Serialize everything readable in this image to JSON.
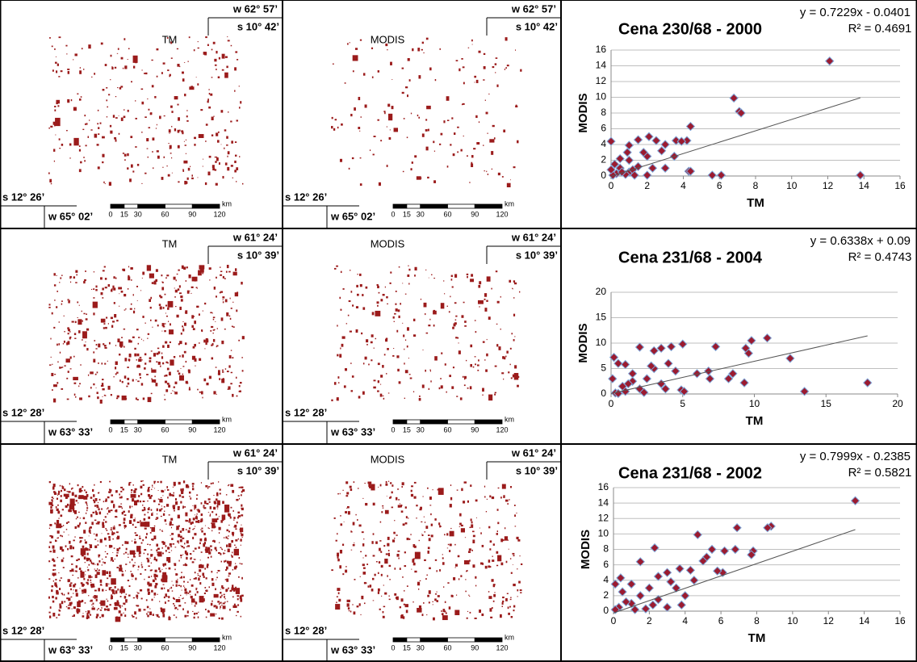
{
  "maps": [
    {
      "label": "TM",
      "top_w": "w 62° 57’",
      "top_s": "s 10° 42’",
      "bottom_s": "s 12° 26’",
      "bottom_w": "w 65° 02’"
    },
    {
      "label": "MODIS",
      "top_w": "w 62° 57’",
      "top_s": "s 10° 42’",
      "bottom_s": "s 12° 26’",
      "bottom_w": "w 65° 02’"
    },
    {
      "label": "TM",
      "top_w": "w 61° 24’",
      "top_s": "s 10° 39’",
      "bottom_s": "s 12° 28’",
      "bottom_w": "w 63° 33’"
    },
    {
      "label": "MODIS",
      "top_w": "w 61° 24’",
      "top_s": "s 10° 39’",
      "bottom_s": "s 12° 28’",
      "bottom_w": "w 63° 33’"
    },
    {
      "label": "TM",
      "top_w": "w 61° 24’",
      "top_s": "s 10° 39’",
      "bottom_s": "s 12° 28’",
      "bottom_w": "w 63° 33’"
    },
    {
      "label": "MODIS",
      "top_w": "w 61° 24’",
      "top_s": "s 10° 39’",
      "bottom_s": "s 12° 28’",
      "bottom_w": "w 63° 33’"
    }
  ],
  "scale_ticks": [
    0,
    15,
    30,
    60,
    90,
    120
  ],
  "scale_unit": "km",
  "chart_data": [
    {
      "type": "scatter",
      "title": "Cena 230/68 - 2000",
      "equation": "y = 0.7229x - 0.0401",
      "r2": "R² = 0.4691",
      "x_label": "TM",
      "y_label": "MODIS",
      "color": "#9b1b30",
      "edge_color": "#7fa7d9",
      "grid": true,
      "xlim": [
        0,
        16
      ],
      "xticks": [
        0,
        2,
        4,
        6,
        8,
        10,
        12,
        14,
        16
      ],
      "ylim": [
        0,
        16
      ],
      "yticks": [
        0,
        2,
        4,
        6,
        8,
        10,
        12,
        14,
        16
      ],
      "trendline": {
        "slope": 0.7229,
        "intercept": -0.0401
      },
      "x": [
        12.1,
        6.8,
        7.1,
        7.2,
        13.8,
        5.6,
        6.1,
        4.4,
        4.2,
        3.6,
        3.9,
        4.3,
        4.4,
        2.1,
        1.5,
        0,
        1,
        2.5,
        3,
        0.5,
        1,
        2,
        2.3,
        3,
        1,
        0.3,
        0.1,
        0.5,
        1.5,
        2,
        0.8,
        1.2,
        0.2,
        3.5,
        2.8,
        1.8,
        0.9,
        1.3,
        0,
        0.6
      ],
      "values": [
        14.6,
        9.9,
        8.2,
        8.0,
        0.1,
        0.1,
        0.1,
        6.3,
        4.5,
        4.5,
        4.4,
        0.6,
        0.6,
        5.0,
        4.6,
        4.4,
        3.9,
        4.5,
        4.0,
        2.2,
        2,
        2.5,
        1.0,
        1.0,
        0.5,
        0.3,
        0.1,
        1.0,
        1.2,
        0.1,
        0.2,
        0.8,
        1.5,
        2.5,
        3.2,
        3.0,
        3.0,
        0.1,
        0.8,
        0.5
      ]
    },
    {
      "type": "scatter",
      "title": "Cena 231/68 - 2004",
      "equation": "y = 0.6338x + 0.09",
      "r2": "R² = 0.4743",
      "x_label": "TM",
      "y_label": "MODIS",
      "color": "#9b1b30",
      "edge_color": "#7fa7d9",
      "grid": true,
      "xlim": [
        0,
        20
      ],
      "xticks": [
        0,
        5,
        10,
        15,
        20
      ],
      "ylim": [
        0,
        20
      ],
      "yticks": [
        0,
        5,
        10,
        15,
        20
      ],
      "trendline": {
        "slope": 0.6338,
        "intercept": 0.09
      },
      "x": [
        17.9,
        13.5,
        12.5,
        10.9,
        9.8,
        9.4,
        9.6,
        9.3,
        8.5,
        8.2,
        7.3,
        6.8,
        6.9,
        5,
        4.2,
        3.5,
        3,
        2,
        0.2,
        0.5,
        1,
        4.9,
        5.1,
        1.5,
        2.5,
        3,
        4,
        4.5,
        3.5,
        2,
        1,
        0.3,
        0.8,
        1.5,
        2.3,
        3.8,
        0.1,
        0.5,
        1.2,
        2.8,
        6
      ],
      "values": [
        2.2,
        0.5,
        7,
        11,
        10.5,
        9,
        8,
        2.2,
        4,
        3,
        9.3,
        4.5,
        3,
        9.8,
        9.3,
        9,
        8.5,
        9.2,
        7.2,
        6,
        5.8,
        0.8,
        0.5,
        4,
        3,
        5,
        6,
        4.5,
        2,
        1,
        0.5,
        0.2,
        1.5,
        2.5,
        0.3,
        1,
        3,
        0.1,
        2,
        5.5,
        4
      ]
    },
    {
      "type": "scatter",
      "title": "Cena 231/68 - 2002",
      "equation": "y = 0.7999x - 0.2385",
      "r2": "R² = 0.5821",
      "x_label": "TM",
      "y_label": "MODIS",
      "color": "#9b1b30",
      "edge_color": "#7fa7d9",
      "grid": true,
      "xlim": [
        0,
        16
      ],
      "xticks": [
        0,
        2,
        4,
        6,
        8,
        10,
        12,
        14,
        16
      ],
      "ylim": [
        0,
        16
      ],
      "yticks": [
        0,
        2,
        4,
        6,
        8,
        10,
        12,
        14,
        16
      ],
      "trendline": {
        "slope": 0.7999,
        "intercept": -0.2385
      },
      "x": [
        13.5,
        8.8,
        8.6,
        6.9,
        4.7,
        6.8,
        7.8,
        7.7,
        5.5,
        6.2,
        5.2,
        2.3,
        1.5,
        5,
        6.1,
        4.3,
        3.7,
        3,
        2.5,
        0.4,
        1,
        2,
        3.5,
        4,
        1.5,
        0.5,
        2.5,
        1,
        0.3,
        0.1,
        1.8,
        3,
        4.5,
        5.8,
        3.2,
        0.7,
        2.2,
        0.1,
        1.2,
        3.8
      ],
      "values": [
        14.3,
        11,
        10.8,
        10.8,
        9.9,
        8,
        7.8,
        7.3,
        8,
        7.8,
        7,
        8.2,
        6.4,
        6.5,
        5,
        5.3,
        5.5,
        5,
        4.5,
        4.3,
        3.5,
        3,
        3,
        2,
        2,
        2.5,
        1.5,
        1,
        0.5,
        0.2,
        0.3,
        0.5,
        4,
        5.2,
        3.8,
        1.2,
        0.8,
        3.5,
        0.2,
        0.8
      ]
    }
  ]
}
